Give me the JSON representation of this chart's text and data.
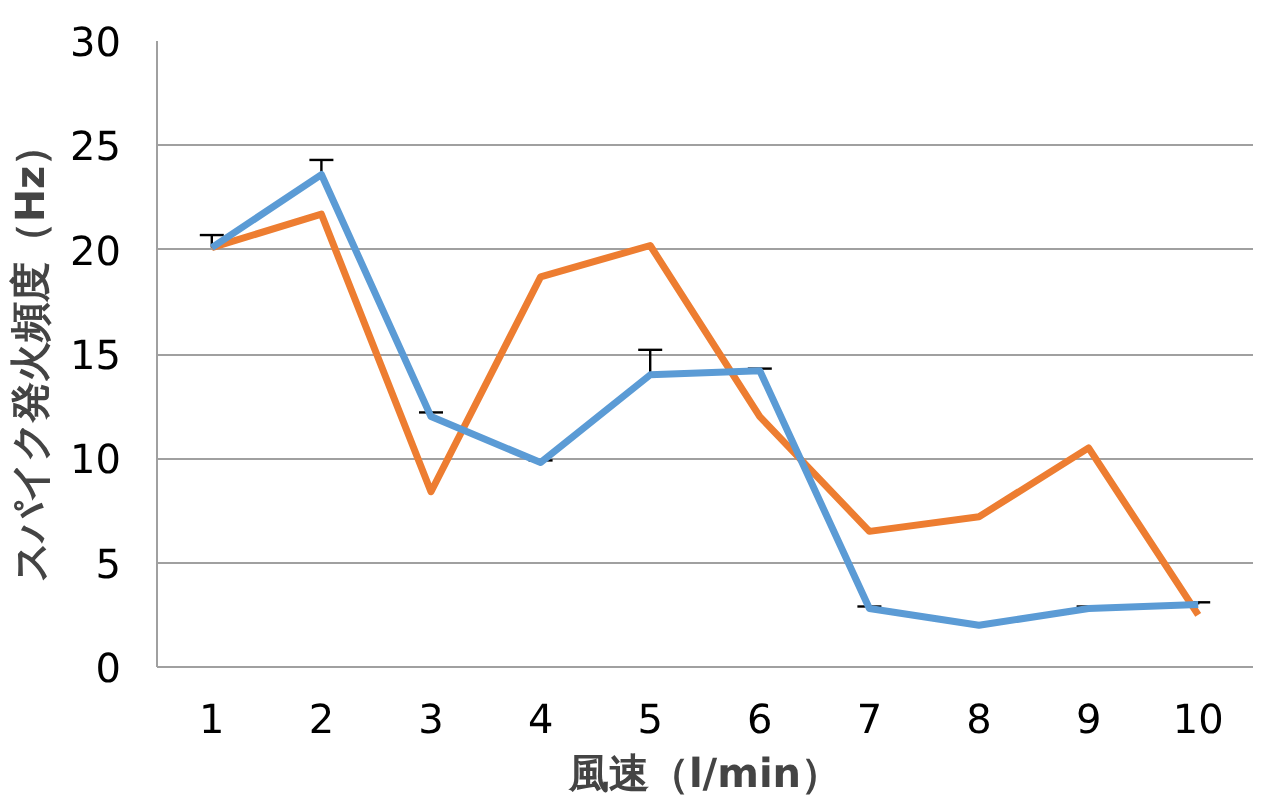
{
  "chart_data": {
    "type": "line",
    "xlabel": "風速（l/min）",
    "ylabel": "スパイク発火頻度（Hz）",
    "categories": [
      "1",
      "2",
      "3",
      "4",
      "5",
      "6",
      "7",
      "8",
      "9",
      "10"
    ],
    "series": [
      {
        "color": "#ed7d31",
        "values": [
          20.1,
          21.7,
          8.4,
          18.7,
          20.2,
          12.0,
          6.5,
          7.2,
          10.5,
          2.5
        ]
      },
      {
        "color": "#5b9bd5",
        "values": [
          20.1,
          23.6,
          12.0,
          9.8,
          14.0,
          14.2,
          2.8,
          2.0,
          2.8,
          3.0
        ],
        "errors": [
          [
            20.1,
            20.7
          ],
          [
            23.6,
            24.3
          ],
          [
            12.0,
            12.2
          ],
          [
            9.8,
            9.9
          ],
          [
            14.0,
            15.2
          ],
          [
            14.2,
            14.3
          ],
          [
            2.8,
            2.9
          ],
          [
            2.0,
            2.1
          ],
          [
            2.8,
            2.9
          ],
          [
            3.0,
            3.1
          ]
        ]
      }
    ],
    "ylim": [
      0,
      30
    ],
    "yticks": [
      0,
      5,
      10,
      15,
      20,
      25,
      30
    ],
    "grid": "y"
  }
}
